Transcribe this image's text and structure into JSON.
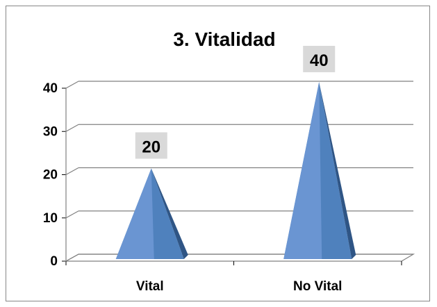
{
  "chart_data": {
    "type": "bar",
    "shape": "pyramid",
    "three_d": true,
    "title": "3. Vitalidad",
    "categories": [
      "Vital",
      "No Vital"
    ],
    "values": [
      20,
      40
    ],
    "data_labels": [
      "20",
      "40"
    ],
    "y_ticks": [
      "0",
      "10",
      "20",
      "30",
      "40"
    ],
    "ylim": [
      0,
      40
    ],
    "grid": true,
    "legend": "none",
    "xlabel": "",
    "ylabel": ""
  },
  "colors": {
    "bar_light": "#6a95d2",
    "bar_mid": "#4f81bd",
    "bar_dark": "#2f5585",
    "label_bg": "#d9d9d9",
    "gridline": "#808080"
  }
}
